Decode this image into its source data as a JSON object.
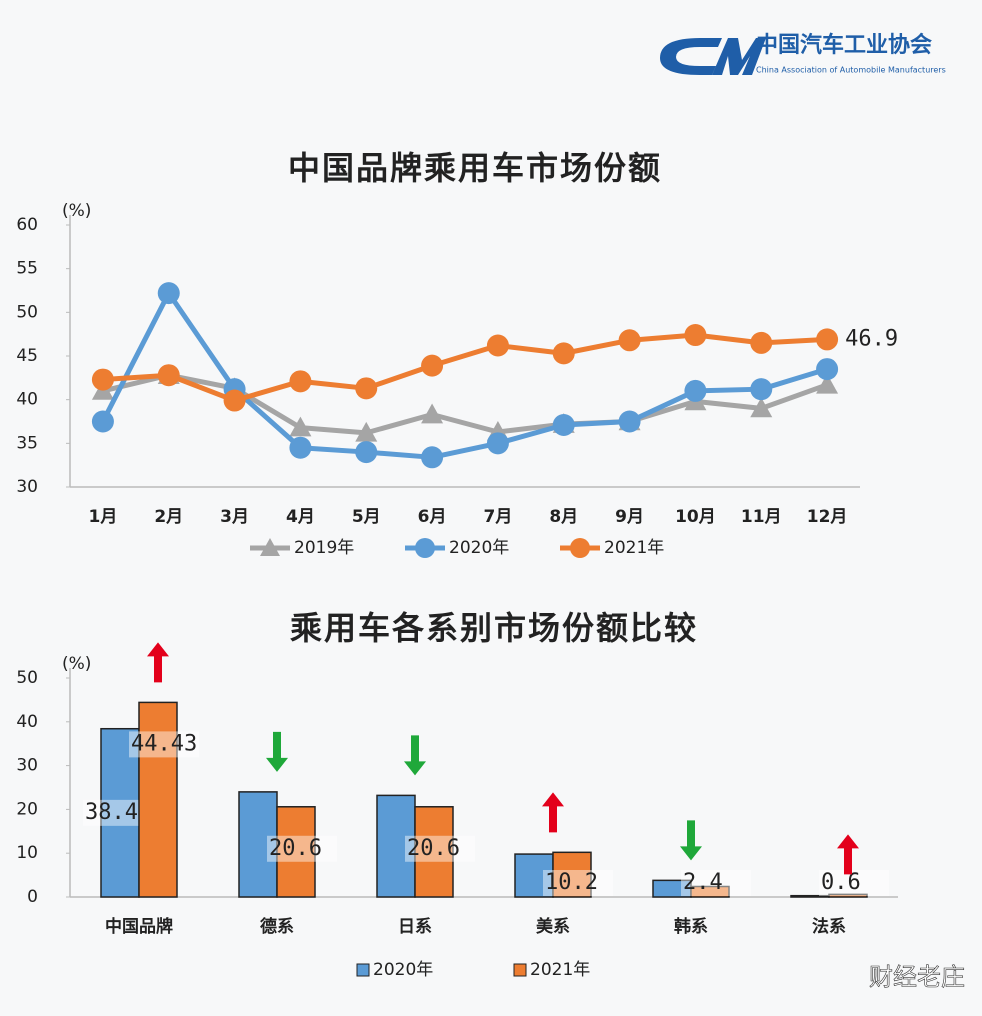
{
  "organization": "中国汽车工业协会",
  "organization_en": "China Association of Automobile Manufacturers",
  "watermark": "财经老庄",
  "chart_data": [
    {
      "type": "line",
      "title": "中国品牌乘用车市场份额",
      "ylabel": "(%)",
      "categories": [
        "1月",
        "2月",
        "3月",
        "4月",
        "5月",
        "6月",
        "7月",
        "8月",
        "9月",
        "10月",
        "11月",
        "12月"
      ],
      "ylim": [
        30,
        60
      ],
      "yticks": [
        30,
        35,
        40,
        45,
        50,
        55,
        60
      ],
      "series": [
        {
          "name": "2019年",
          "color": "#a5a5a5",
          "marker": "triangle",
          "values": [
            41.0,
            42.8,
            41.3,
            36.8,
            36.2,
            38.3,
            36.3,
            37.2,
            37.5,
            39.8,
            39.0,
            41.7
          ]
        },
        {
          "name": "2020年",
          "color": "#5b9bd5",
          "marker": "circle",
          "values": [
            37.5,
            52.2,
            41.2,
            34.5,
            34.0,
            33.4,
            35.0,
            37.1,
            37.5,
            41.0,
            41.2,
            43.5
          ]
        },
        {
          "name": "2021年",
          "color": "#ed7d31",
          "marker": "circle",
          "values": [
            42.3,
            42.8,
            39.9,
            42.1,
            41.3,
            43.9,
            46.2,
            45.3,
            46.8,
            47.4,
            46.5,
            46.9
          ],
          "value_labels": [
            null,
            null,
            null,
            null,
            null,
            null,
            null,
            null,
            null,
            null,
            null,
            "46.9"
          ]
        }
      ]
    },
    {
      "type": "bar",
      "title": "乘用车各系别市场份额比较",
      "ylabel": "(%)",
      "categories": [
        "中国品牌",
        "德系",
        "日系",
        "美系",
        "韩系",
        "法系"
      ],
      "ylim": [
        0,
        50
      ],
      "yticks": [
        0,
        10,
        20,
        30,
        40,
        50
      ],
      "increase_color": "#e3001b",
      "decrease_color": "#1fa83a",
      "series": [
        {
          "name": "2020年",
          "color": "#5b9bd5",
          "values": [
            38.42,
            24.0,
            23.2,
            9.8,
            3.8,
            0.3
          ],
          "value_labels": [
            "38.42",
            null,
            null,
            null,
            null,
            null
          ]
        },
        {
          "name": "2021年",
          "color": "#ed7d31",
          "values": [
            44.43,
            20.6,
            20.6,
            10.2,
            2.4,
            0.6
          ],
          "value_labels": [
            "44.43",
            "20.6",
            "20.6",
            "10.2",
            "2.4",
            "0.6"
          ]
        }
      ]
    }
  ]
}
